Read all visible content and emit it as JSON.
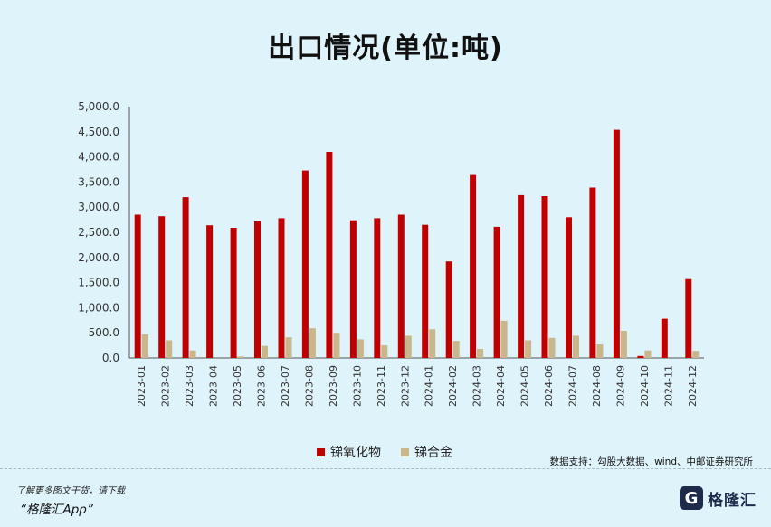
{
  "title": "出口情况(单位:吨)",
  "chart_data": {
    "type": "bar",
    "categories": [
      "2023-01",
      "2023-02",
      "2023-03",
      "2023-04",
      "2023-05",
      "2023-06",
      "2023-07",
      "2023-08",
      "2023-09",
      "2023-10",
      "2023-11",
      "2023-12",
      "2024-01",
      "2024-02",
      "2024-03",
      "2024-04",
      "2024-05",
      "2024-06",
      "2024-07",
      "2024-08",
      "2024-09",
      "2024-10",
      "2024-11",
      "2024-12"
    ],
    "series": [
      {
        "name": "锑氧化物",
        "color": "#c00000",
        "values": [
          2850,
          2820,
          3200,
          2640,
          2590,
          2720,
          2780,
          3730,
          4100,
          2740,
          2780,
          2850,
          2650,
          1920,
          3640,
          2610,
          3240,
          3220,
          2800,
          3390,
          4540,
          40,
          780,
          1570
        ]
      },
      {
        "name": "锑合金",
        "color": "#c9b68a",
        "values": [
          470,
          350,
          150,
          0,
          30,
          240,
          410,
          590,
          500,
          370,
          250,
          440,
          570,
          340,
          180,
          740,
          350,
          400,
          440,
          270,
          540,
          150,
          0,
          140
        ]
      }
    ],
    "y_ticks": [
      "0.0",
      "500.0",
      "1,000.0",
      "1,500.0",
      "2,000.0",
      "2,500.0",
      "3,000.0",
      "3,500.0",
      "4,000.0",
      "4,500.0",
      "5,000.0"
    ],
    "ylim": [
      0,
      5000
    ],
    "legend_position": "bottom-center"
  },
  "source_text": "数据支持：勾股大数据、wind、中邮证券研究所",
  "footer": {
    "line1": "了解更多图文干货，请下载",
    "line2": "“格隆汇App”"
  },
  "logo": {
    "mark": "G",
    "text": "格隆汇"
  }
}
